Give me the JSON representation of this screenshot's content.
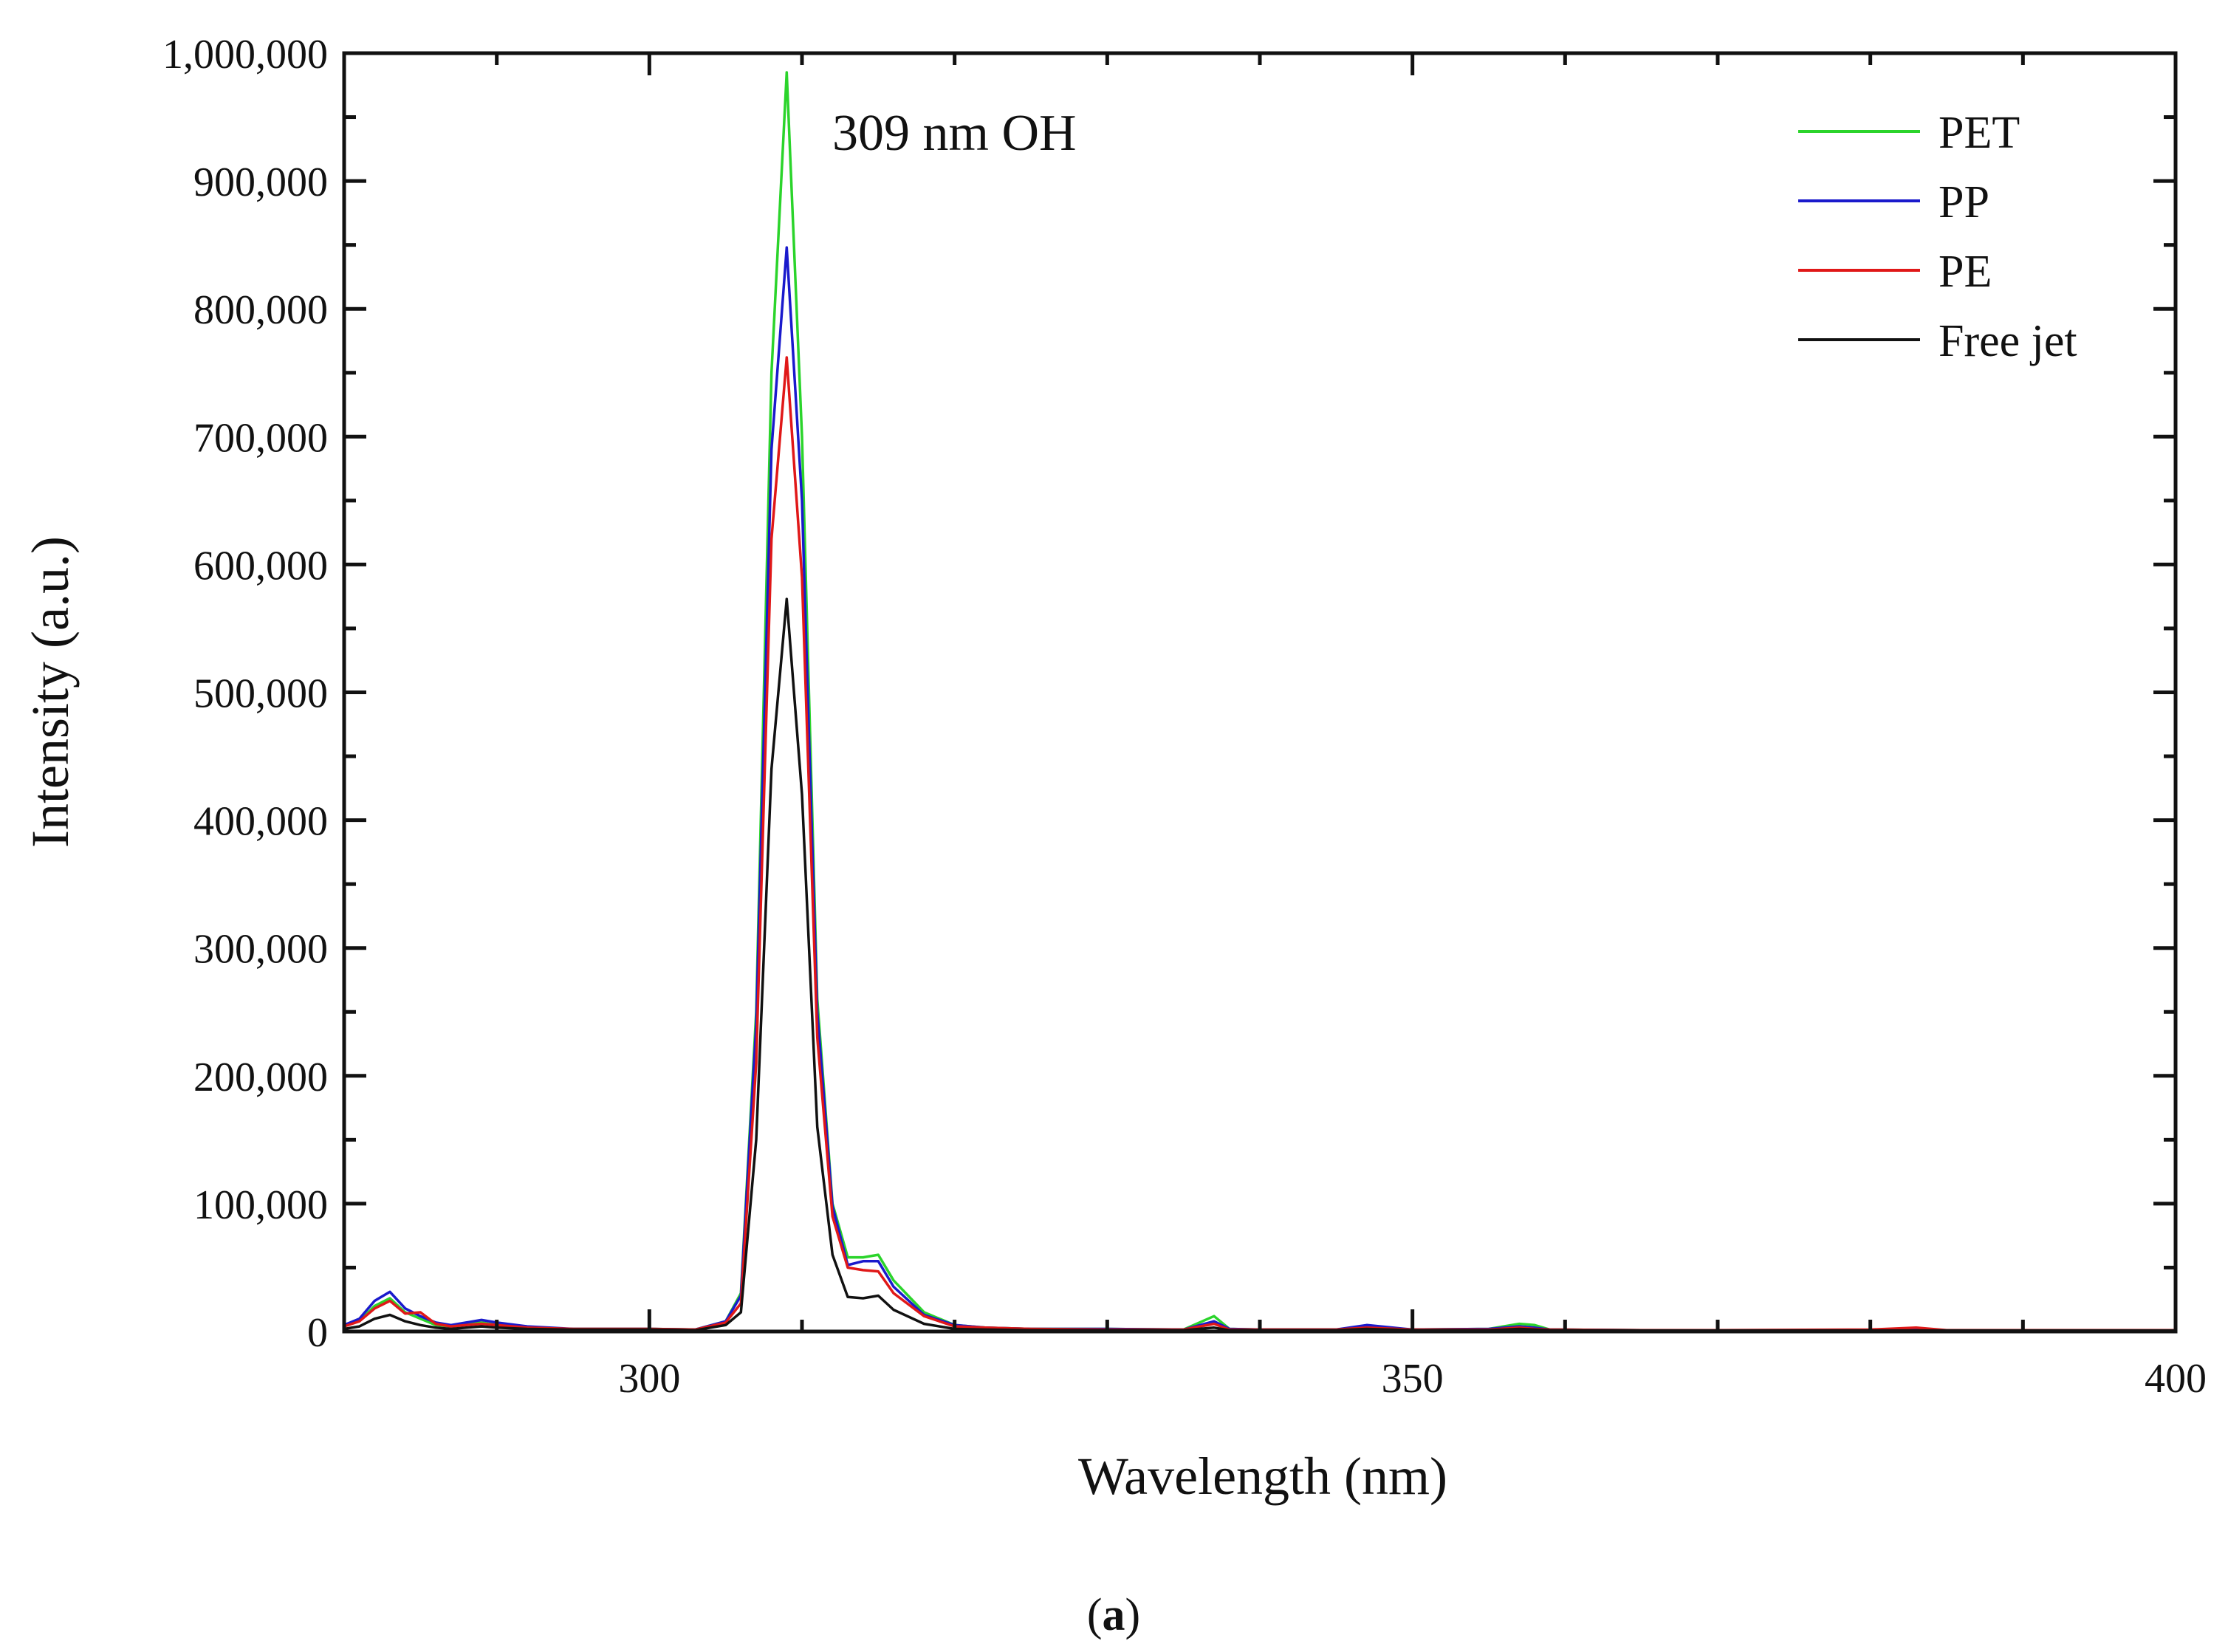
{
  "chart_data": {
    "type": "line",
    "title": "",
    "xlabel": "Wavelength (nm)",
    "ylabel": "Intensity (a.u.)",
    "xlim": [
      280,
      400
    ],
    "ylim": [
      0,
      1000000
    ],
    "x_ticks": [
      300,
      350,
      400
    ],
    "x_tick_labels": [
      "300",
      "350",
      "400"
    ],
    "y_ticks": [
      0,
      100000,
      200000,
      300000,
      400000,
      500000,
      600000,
      700000,
      800000,
      900000,
      1000000
    ],
    "y_tick_labels": [
      "0",
      "100,000",
      "200,000",
      "300,000",
      "400,000",
      "500,000",
      "600,000",
      "700,000",
      "800,000",
      "900,000",
      "1,000,000"
    ],
    "annotation": "309 nm OH",
    "legend_position": "top-right",
    "caption_open": "(",
    "caption_letter": "a",
    "caption_close": ")",
    "series": [
      {
        "name": "PET",
        "color": "#2bd42b",
        "points": [
          [
            280,
            5000
          ],
          [
            281,
            8000
          ],
          [
            282,
            20000
          ],
          [
            283,
            26000
          ],
          [
            284,
            15000
          ],
          [
            285,
            10000
          ],
          [
            286,
            5000
          ],
          [
            287,
            4000
          ],
          [
            288,
            6000
          ],
          [
            289,
            7000
          ],
          [
            290,
            5000
          ],
          [
            292,
            3000
          ],
          [
            295,
            2000
          ],
          [
            300,
            2000
          ],
          [
            303,
            1500
          ],
          [
            305,
            8000
          ],
          [
            306,
            30000
          ],
          [
            307,
            250000
          ],
          [
            308,
            750000
          ],
          [
            309,
            985000
          ],
          [
            310,
            700000
          ],
          [
            311,
            260000
          ],
          [
            312,
            100000
          ],
          [
            313,
            58000
          ],
          [
            314,
            58000
          ],
          [
            315,
            60000
          ],
          [
            316,
            40000
          ],
          [
            318,
            15000
          ],
          [
            320,
            5000
          ],
          [
            322,
            3000
          ],
          [
            325,
            2000
          ],
          [
            330,
            2000
          ],
          [
            335,
            1500
          ],
          [
            337,
            12000
          ],
          [
            338,
            2000
          ],
          [
            340,
            1500
          ],
          [
            345,
            1500
          ],
          [
            347,
            3000
          ],
          [
            350,
            1500
          ],
          [
            355,
            2000
          ],
          [
            357,
            6000
          ],
          [
            358,
            5000
          ],
          [
            359,
            1500
          ],
          [
            365,
            1000
          ],
          [
            370,
            1000
          ],
          [
            380,
            1000
          ],
          [
            390,
            1000
          ],
          [
            400,
            1000
          ]
        ]
      },
      {
        "name": "PP",
        "color": "#1a1acc",
        "points": [
          [
            280,
            5000
          ],
          [
            281,
            10000
          ],
          [
            282,
            24000
          ],
          [
            283,
            31000
          ],
          [
            284,
            18000
          ],
          [
            285,
            12000
          ],
          [
            286,
            7000
          ],
          [
            287,
            5000
          ],
          [
            288,
            7000
          ],
          [
            289,
            9000
          ],
          [
            290,
            7000
          ],
          [
            292,
            4000
          ],
          [
            295,
            2000
          ],
          [
            300,
            2000
          ],
          [
            303,
            1500
          ],
          [
            305,
            8000
          ],
          [
            306,
            28000
          ],
          [
            307,
            240000
          ],
          [
            308,
            690000
          ],
          [
            309,
            848000
          ],
          [
            310,
            650000
          ],
          [
            311,
            250000
          ],
          [
            312,
            98000
          ],
          [
            313,
            52000
          ],
          [
            314,
            55000
          ],
          [
            315,
            55000
          ],
          [
            316,
            35000
          ],
          [
            318,
            13000
          ],
          [
            320,
            5000
          ],
          [
            322,
            3000
          ],
          [
            325,
            2000
          ],
          [
            330,
            2000
          ],
          [
            335,
            1500
          ],
          [
            337,
            8000
          ],
          [
            338,
            2000
          ],
          [
            340,
            1500
          ],
          [
            345,
            1500
          ],
          [
            347,
            5000
          ],
          [
            350,
            1500
          ],
          [
            355,
            2000
          ],
          [
            357,
            4000
          ],
          [
            358,
            3000
          ],
          [
            359,
            1500
          ],
          [
            365,
            1000
          ],
          [
            370,
            1000
          ],
          [
            380,
            1000
          ],
          [
            390,
            1000
          ],
          [
            400,
            1000
          ]
        ]
      },
      {
        "name": "PE",
        "color": "#e01818",
        "points": [
          [
            280,
            4000
          ],
          [
            281,
            8000
          ],
          [
            282,
            18000
          ],
          [
            283,
            24000
          ],
          [
            284,
            14000
          ],
          [
            285,
            15000
          ],
          [
            286,
            6000
          ],
          [
            287,
            4000
          ],
          [
            288,
            5000
          ],
          [
            289,
            6000
          ],
          [
            290,
            5000
          ],
          [
            292,
            3000
          ],
          [
            295,
            2000
          ],
          [
            300,
            2000
          ],
          [
            303,
            1500
          ],
          [
            305,
            7000
          ],
          [
            306,
            22000
          ],
          [
            307,
            210000
          ],
          [
            308,
            620000
          ],
          [
            309,
            762000
          ],
          [
            310,
            590000
          ],
          [
            311,
            230000
          ],
          [
            312,
            90000
          ],
          [
            313,
            50000
          ],
          [
            314,
            48000
          ],
          [
            315,
            47000
          ],
          [
            316,
            30000
          ],
          [
            318,
            12000
          ],
          [
            320,
            4000
          ],
          [
            322,
            3000
          ],
          [
            325,
            2000
          ],
          [
            330,
            1500
          ],
          [
            335,
            1500
          ],
          [
            337,
            6000
          ],
          [
            338,
            1500
          ],
          [
            340,
            1500
          ],
          [
            345,
            1500
          ],
          [
            347,
            3000
          ],
          [
            350,
            1500
          ],
          [
            355,
            1500
          ],
          [
            357,
            3000
          ],
          [
            358,
            2000
          ],
          [
            359,
            1500
          ],
          [
            365,
            1000
          ],
          [
            370,
            1000
          ],
          [
            380,
            1500
          ],
          [
            383,
            3000
          ],
          [
            385,
            1000
          ],
          [
            390,
            1000
          ],
          [
            400,
            1000
          ]
        ]
      },
      {
        "name": "Free jet",
        "color": "#111111",
        "points": [
          [
            280,
            2000
          ],
          [
            281,
            4000
          ],
          [
            282,
            10000
          ],
          [
            283,
            13000
          ],
          [
            284,
            8000
          ],
          [
            285,
            5000
          ],
          [
            286,
            3000
          ],
          [
            287,
            2000
          ],
          [
            288,
            3000
          ],
          [
            289,
            4000
          ],
          [
            290,
            3000
          ],
          [
            292,
            2000
          ],
          [
            295,
            1500
          ],
          [
            300,
            1500
          ],
          [
            303,
            1000
          ],
          [
            305,
            5000
          ],
          [
            306,
            15000
          ],
          [
            307,
            150000
          ],
          [
            308,
            440000
          ],
          [
            309,
            573000
          ],
          [
            310,
            420000
          ],
          [
            311,
            160000
          ],
          [
            312,
            60000
          ],
          [
            313,
            27000
          ],
          [
            314,
            26000
          ],
          [
            315,
            28000
          ],
          [
            316,
            17000
          ],
          [
            318,
            6000
          ],
          [
            320,
            2000
          ],
          [
            322,
            1500
          ],
          [
            325,
            1000
          ],
          [
            330,
            1000
          ],
          [
            335,
            1000
          ],
          [
            337,
            3000
          ],
          [
            338,
            1000
          ],
          [
            340,
            1000
          ],
          [
            345,
            1000
          ],
          [
            347,
            2000
          ],
          [
            350,
            1000
          ],
          [
            355,
            1000
          ],
          [
            357,
            2000
          ],
          [
            358,
            1500
          ],
          [
            359,
            1000
          ],
          [
            365,
            800
          ],
          [
            370,
            800
          ],
          [
            380,
            800
          ],
          [
            390,
            800
          ],
          [
            400,
            800
          ]
        ]
      }
    ]
  }
}
